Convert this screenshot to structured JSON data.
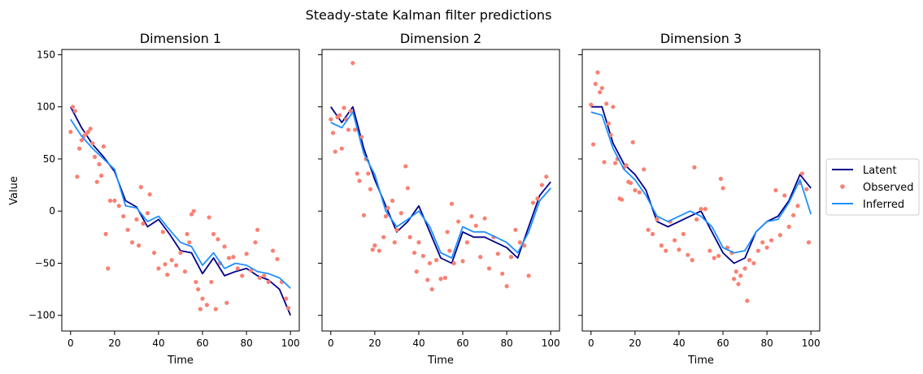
{
  "figure": {
    "title": "Steady-state Kalman filter predictions",
    "ylabel": "Value"
  },
  "legend": {
    "placement": "center-right, outside plot area",
    "entries": [
      {
        "label": "Latent",
        "kind": "line",
        "color": "#00008b"
      },
      {
        "label": "Observed",
        "kind": "marker",
        "color": "#fa8072"
      },
      {
        "label": "Inferred",
        "kind": "line",
        "color": "#1e90ff"
      }
    ]
  },
  "chart_data": [
    {
      "type": "line",
      "title": "Dimension 1",
      "xlabel": "Time",
      "ylabel": "Value",
      "xlim": [
        -4,
        104
      ],
      "ylim": [
        -115,
        155
      ],
      "xticks": [
        0,
        20,
        40,
        60,
        80,
        100
      ],
      "yticks": [
        -100,
        -50,
        0,
        50,
        100,
        150
      ],
      "grid": false,
      "series": [
        {
          "name": "Latent",
          "style": "line",
          "color": "#00008b",
          "x_start": 0,
          "x_step": 5,
          "values": [
            100,
            80,
            64,
            52,
            38,
            10,
            4,
            -15,
            -8,
            -22,
            -38,
            -40,
            -60,
            -45,
            -62,
            -58,
            -55,
            -62,
            -66,
            -75,
            -100
          ]
        },
        {
          "name": "Observed",
          "style": "scatter",
          "color": "#fa8072",
          "points": [
            [
              0,
              76
            ],
            [
              1,
              100
            ],
            [
              2,
              96
            ],
            [
              3,
              33
            ],
            [
              4,
              60
            ],
            [
              5,
              68
            ],
            [
              6,
              72
            ],
            [
              7,
              74
            ],
            [
              8,
              76
            ],
            [
              9,
              79
            ],
            [
              10,
              65
            ],
            [
              11,
              52
            ],
            [
              12,
              28
            ],
            [
              13,
              45
            ],
            [
              14,
              34
            ],
            [
              15,
              62
            ],
            [
              16,
              -22
            ],
            [
              17,
              -55
            ],
            [
              18,
              10
            ],
            [
              20,
              10
            ],
            [
              22,
              5
            ],
            [
              24,
              -5
            ],
            [
              26,
              -18
            ],
            [
              28,
              -30
            ],
            [
              30,
              -8
            ],
            [
              31,
              -33
            ],
            [
              32,
              23
            ],
            [
              33,
              -12
            ],
            [
              35,
              -2
            ],
            [
              36,
              16
            ],
            [
              38,
              -40
            ],
            [
              40,
              -55
            ],
            [
              42,
              -20
            ],
            [
              43,
              -51
            ],
            [
              44,
              -61
            ],
            [
              46,
              -47
            ],
            [
              48,
              -52
            ],
            [
              50,
              -40
            ],
            [
              52,
              -58
            ],
            [
              53,
              -22
            ],
            [
              54,
              -30
            ],
            [
              55,
              -3
            ],
            [
              56,
              0
            ],
            [
              57,
              -68
            ],
            [
              58,
              -75
            ],
            [
              59,
              -94
            ],
            [
              60,
              -84
            ],
            [
              62,
              -90
            ],
            [
              63,
              -6
            ],
            [
              64,
              -68
            ],
            [
              65,
              -22
            ],
            [
              66,
              -94
            ],
            [
              67,
              -27
            ],
            [
              68,
              -50
            ],
            [
              70,
              -34
            ],
            [
              71,
              -88
            ],
            [
              72,
              -45
            ],
            [
              74,
              -44
            ],
            [
              76,
              -55
            ],
            [
              78,
              -62
            ],
            [
              80,
              -41
            ],
            [
              82,
              -57
            ],
            [
              84,
              -30
            ],
            [
              85,
              -18
            ],
            [
              86,
              -64
            ],
            [
              88,
              -62
            ],
            [
              90,
              -68
            ],
            [
              92,
              -38
            ],
            [
              94,
              -46
            ],
            [
              96,
              -68
            ],
            [
              98,
              -84
            ],
            [
              99,
              -93
            ]
          ]
        },
        {
          "name": "Inferred",
          "style": "line",
          "color": "#1e90ff",
          "x_start": 0,
          "x_step": 5,
          "values": [
            88,
            72,
            60,
            50,
            40,
            5,
            3,
            -10,
            -5,
            -18,
            -30,
            -34,
            -52,
            -40,
            -55,
            -50,
            -52,
            -58,
            -60,
            -64,
            -74
          ]
        }
      ]
    },
    {
      "type": "line",
      "title": "Dimension 2",
      "xlabel": "Time",
      "xlim": [
        -4,
        104
      ],
      "ylim": [
        -115,
        155
      ],
      "xticks": [
        0,
        20,
        40,
        60,
        80,
        100
      ],
      "grid": false,
      "series": [
        {
          "name": "Latent",
          "style": "line",
          "color": "#00008b",
          "x_start": 0,
          "x_step": 5,
          "values": [
            100,
            85,
            100,
            60,
            30,
            5,
            -20,
            -10,
            5,
            -20,
            -45,
            -50,
            -20,
            -25,
            -25,
            -30,
            -35,
            -45,
            -15,
            15,
            28
          ]
        },
        {
          "name": "Observed",
          "style": "scatter",
          "color": "#fa8072",
          "points": [
            [
              0,
              88
            ],
            [
              1,
              75
            ],
            [
              2,
              57
            ],
            [
              3,
              90
            ],
            [
              4,
              92
            ],
            [
              5,
              60
            ],
            [
              6,
              99
            ],
            [
              7,
              88
            ],
            [
              8,
              78
            ],
            [
              9,
              96
            ],
            [
              10,
              142
            ],
            [
              11,
              78
            ],
            [
              12,
              36
            ],
            [
              13,
              29
            ],
            [
              14,
              71
            ],
            [
              15,
              -4
            ],
            [
              16,
              50
            ],
            [
              17,
              36
            ],
            [
              18,
              21
            ],
            [
              19,
              -37
            ],
            [
              20,
              -33
            ],
            [
              22,
              -38
            ],
            [
              24,
              -25
            ],
            [
              25,
              -5
            ],
            [
              26,
              3
            ],
            [
              28,
              10
            ],
            [
              29,
              -30
            ],
            [
              30,
              -18
            ],
            [
              32,
              -2
            ],
            [
              34,
              43
            ],
            [
              35,
              22
            ],
            [
              36,
              -25
            ],
            [
              38,
              -40
            ],
            [
              39,
              -58
            ],
            [
              40,
              -30
            ],
            [
              42,
              -43
            ],
            [
              44,
              -66
            ],
            [
              45,
              -50
            ],
            [
              46,
              -75
            ],
            [
              48,
              -47
            ],
            [
              50,
              -65
            ],
            [
              52,
              -64
            ],
            [
              53,
              -20
            ],
            [
              54,
              -38
            ],
            [
              55,
              7
            ],
            [
              56,
              -50
            ],
            [
              58,
              -10
            ],
            [
              60,
              -48
            ],
            [
              62,
              -30
            ],
            [
              64,
              -5
            ],
            [
              66,
              -14
            ],
            [
              68,
              -44
            ],
            [
              70,
              -7
            ],
            [
              72,
              -55
            ],
            [
              74,
              -25
            ],
            [
              76,
              -41
            ],
            [
              78,
              -60
            ],
            [
              80,
              -72
            ],
            [
              82,
              -44
            ],
            [
              84,
              -18
            ],
            [
              86,
              -30
            ],
            [
              88,
              -33
            ],
            [
              90,
              -62
            ],
            [
              92,
              8
            ],
            [
              94,
              12
            ],
            [
              96,
              25
            ],
            [
              98,
              33
            ]
          ]
        },
        {
          "name": "Inferred",
          "style": "line",
          "color": "#1e90ff",
          "x_start": 0,
          "x_step": 5,
          "values": [
            85,
            80,
            95,
            55,
            35,
            0,
            -15,
            -8,
            0,
            -15,
            -40,
            -45,
            -15,
            -20,
            -20,
            -25,
            -30,
            -40,
            -20,
            10,
            22
          ]
        }
      ]
    },
    {
      "type": "line",
      "title": "Dimension 3",
      "xlabel": "Time",
      "xlim": [
        -4,
        104
      ],
      "ylim": [
        -115,
        155
      ],
      "xticks": [
        0,
        20,
        40,
        60,
        80,
        100
      ],
      "grid": false,
      "series": [
        {
          "name": "Latent",
          "style": "line",
          "color": "#00008b",
          "x_start": 0,
          "x_step": 5,
          "values": [
            100,
            100,
            65,
            45,
            35,
            20,
            -10,
            -15,
            -10,
            -5,
            0,
            -20,
            -40,
            -50,
            -45,
            -20,
            -10,
            -5,
            10,
            35,
            22
          ]
        },
        {
          "name": "Observed",
          "style": "scatter",
          "color": "#fa8072",
          "points": [
            [
              0,
              102
            ],
            [
              1,
              64
            ],
            [
              2,
              122
            ],
            [
              3,
              133
            ],
            [
              4,
              114
            ],
            [
              5,
              118
            ],
            [
              6,
              47
            ],
            [
              7,
              103
            ],
            [
              8,
              84
            ],
            [
              9,
              73
            ],
            [
              10,
              100
            ],
            [
              11,
              46
            ],
            [
              12,
              50
            ],
            [
              13,
              12
            ],
            [
              14,
              11
            ],
            [
              15,
              42
            ],
            [
              16,
              44
            ],
            [
              17,
              28
            ],
            [
              18,
              27
            ],
            [
              19,
              66
            ],
            [
              20,
              20
            ],
            [
              22,
              18
            ],
            [
              24,
              40
            ],
            [
              26,
              -18
            ],
            [
              28,
              -22
            ],
            [
              30,
              -8
            ],
            [
              32,
              -33
            ],
            [
              34,
              -38
            ],
            [
              36,
              -10
            ],
            [
              38,
              -28
            ],
            [
              40,
              -37
            ],
            [
              42,
              -22
            ],
            [
              44,
              -42
            ],
            [
              46,
              -47
            ],
            [
              47,
              42
            ],
            [
              48,
              -8
            ],
            [
              50,
              2
            ],
            [
              52,
              2
            ],
            [
              54,
              -38
            ],
            [
              56,
              -45
            ],
            [
              58,
              -43
            ],
            [
              59,
              31
            ],
            [
              60,
              22
            ],
            [
              62,
              -35
            ],
            [
              64,
              -40
            ],
            [
              65,
              -65
            ],
            [
              66,
              -58
            ],
            [
              67,
              -70
            ],
            [
              68,
              -62
            ],
            [
              70,
              -55
            ],
            [
              71,
              -86
            ],
            [
              72,
              -47
            ],
            [
              74,
              -50
            ],
            [
              76,
              -38
            ],
            [
              78,
              -30
            ],
            [
              80,
              -35
            ],
            [
              82,
              -28
            ],
            [
              84,
              20
            ],
            [
              86,
              -23
            ],
            [
              88,
              15
            ],
            [
              90,
              -15
            ],
            [
              92,
              -4
            ],
            [
              94,
              5
            ],
            [
              95,
              27
            ],
            [
              96,
              36
            ],
            [
              98,
              21
            ],
            [
              99,
              -30
            ]
          ]
        },
        {
          "name": "Inferred",
          "style": "line",
          "color": "#1e90ff",
          "x_start": 0,
          "x_step": 5,
          "values": [
            95,
            92,
            60,
            40,
            30,
            15,
            -5,
            -10,
            -5,
            0,
            -5,
            -15,
            -35,
            -40,
            -38,
            -20,
            -10,
            -8,
            8,
            30,
            -3
          ]
        }
      ]
    }
  ]
}
